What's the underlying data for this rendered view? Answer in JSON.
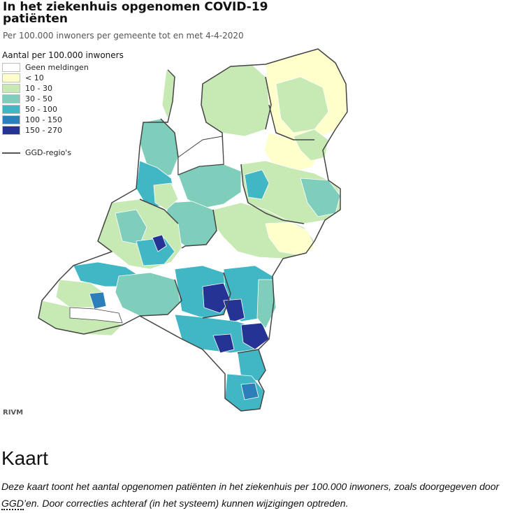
{
  "header": {
    "title": "In het ziekenhuis opgenomen COVID-19 patiënten",
    "subtitle": "Per 100.000 inwoners per gemeente tot en met 4-4-2020"
  },
  "legend": {
    "title": "Aantal per 100.000 inwoners",
    "items": [
      {
        "label": "Geen meldingen",
        "color": "#ffffff"
      },
      {
        "label": "< 10",
        "color": "#ffffcc"
      },
      {
        "label": "10 - 30",
        "color": "#c7e9b4"
      },
      {
        "label": "30 - 50",
        "color": "#7fcdbb"
      },
      {
        "label": "50 - 100",
        "color": "#41b6c4"
      },
      {
        "label": "100 - 150",
        "color": "#2c7fb8"
      },
      {
        "label": "150 - 270",
        "color": "#253494"
      }
    ],
    "boundary_label": "GGD-regio's"
  },
  "source": "RIVM",
  "section": {
    "title": "Kaart",
    "text_before": "Deze kaart toont het aantal opgenomen patiënten in het ziekenhuis per 100.000 inwoners, zoals doorgegeven door ",
    "abbr": "GGD",
    "text_after": "’en. Door correcties achteraf (in het systeem) kunnen wijzigingen optreden."
  }
}
